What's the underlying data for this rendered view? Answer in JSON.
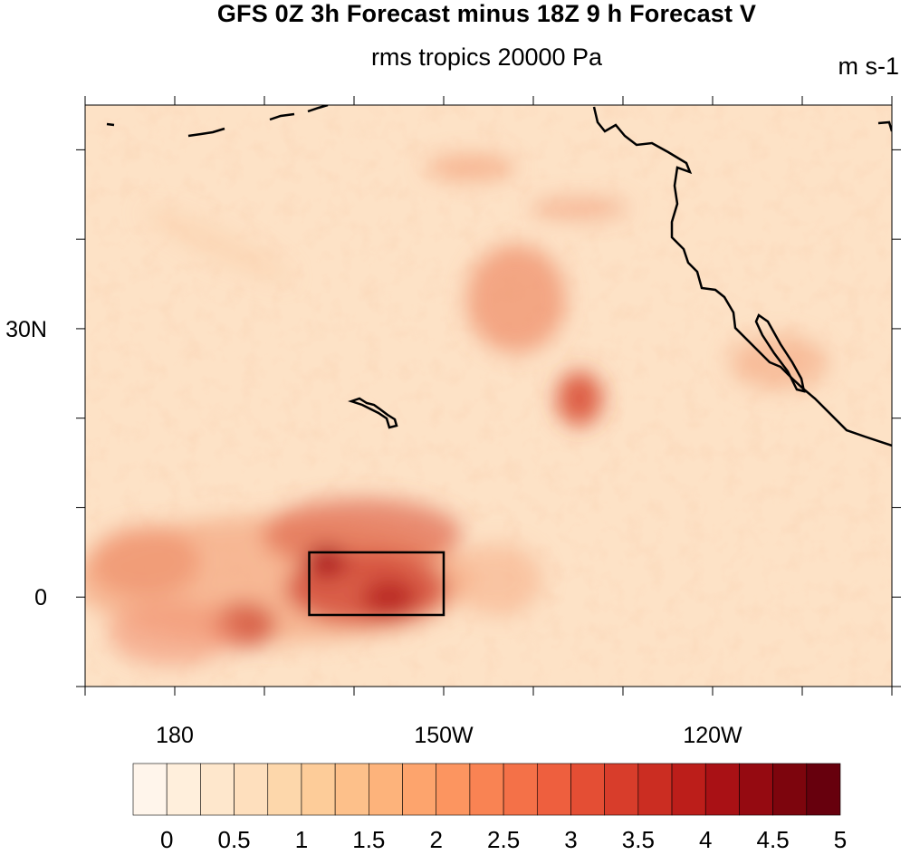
{
  "title": "GFS 0Z 3h Forecast minus 18Z 9 h Forecast V",
  "subtitle": "rms tropics 20000 Pa",
  "units": "m s-1",
  "map": {
    "lon_range": [
      170,
      260
    ],
    "lat_range": [
      -10,
      55
    ],
    "x_ticks": [
      {
        "lon": 180,
        "label": "180"
      },
      {
        "lon": 210,
        "label": "150W"
      },
      {
        "lon": 240,
        "label": "120W"
      }
    ],
    "y_ticks": [
      {
        "lat": 30,
        "label": "30N"
      },
      {
        "lat": 0,
        "label": "0"
      }
    ],
    "highlight_box": {
      "lon": [
        195,
        210
      ],
      "lat": [
        -2,
        5
      ]
    }
  },
  "colorbar": {
    "labels": [
      "0",
      "0.5",
      "1",
      "1.5",
      "2",
      "2.5",
      "3",
      "3.5",
      "4",
      "4.5",
      "5"
    ],
    "colors": [
      "#fff5eb",
      "#ffefdc",
      "#fee7cc",
      "#fedfbd",
      "#fdd7ab",
      "#fdcc99",
      "#fdc08a",
      "#fdb37b",
      "#fda46d",
      "#fc9560",
      "#f98353",
      "#f47148",
      "#ee5f3e",
      "#e44e34",
      "#d83d2b",
      "#cb2d22",
      "#bc1e1a",
      "#a91115",
      "#950a11",
      "#7d050d",
      "#67000d"
    ]
  },
  "chart_data": {
    "type": "heatmap",
    "title": "GFS 0Z 3h Forecast minus 18Z 9 h Forecast V",
    "subtitle": "rms tropics 20000 Pa",
    "units": "m s-1",
    "colorbar_range": [
      0,
      5
    ],
    "x_tick_labels": [
      "180",
      "150W",
      "120W"
    ],
    "y_tick_labels": [
      "30N",
      "0"
    ]
  }
}
